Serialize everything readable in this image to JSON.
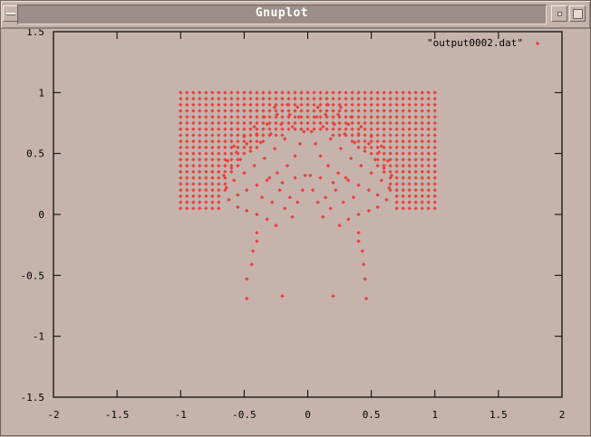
{
  "window": {
    "title": "Gnuplot"
  },
  "colors": {
    "background": "#c6b4ac",
    "point": "#e8413f",
    "axis": "#000000"
  },
  "chart_data": {
    "type": "scatter",
    "marker": "diamond",
    "legend": "top-right",
    "series": [
      {
        "name": "\"output0002.dat\"",
        "points": [
          [
            -0.48,
            -0.69
          ],
          [
            -0.48,
            -0.53
          ],
          [
            -0.44,
            -0.41
          ],
          [
            -0.43,
            -0.3
          ],
          [
            -0.4,
            -0.22
          ],
          [
            -0.4,
            -0.15
          ],
          [
            -0.2,
            -0.67
          ],
          [
            0.2,
            -0.67
          ],
          [
            0.46,
            -0.69
          ],
          [
            0.45,
            -0.53
          ],
          [
            0.44,
            -0.41
          ],
          [
            0.43,
            -0.3
          ],
          [
            0.4,
            -0.22
          ],
          [
            0.4,
            -0.15
          ],
          [
            -0.55,
            0.06
          ],
          [
            -0.48,
            0.03
          ],
          [
            -0.4,
            0.0
          ],
          [
            -0.32,
            -0.04
          ],
          [
            -0.25,
            -0.09
          ],
          [
            -0.18,
            0.05
          ],
          [
            -0.12,
            -0.02
          ],
          [
            -0.08,
            0.1
          ],
          [
            -0.04,
            0.2
          ],
          [
            -0.02,
            0.32
          ],
          [
            0.55,
            0.06
          ],
          [
            0.48,
            0.03
          ],
          [
            0.4,
            0.0
          ],
          [
            0.32,
            -0.04
          ],
          [
            0.25,
            -0.09
          ],
          [
            0.18,
            0.05
          ],
          [
            0.12,
            -0.02
          ],
          [
            0.08,
            0.1
          ],
          [
            0.04,
            0.2
          ],
          [
            0.02,
            0.32
          ],
          [
            -0.62,
            0.12
          ],
          [
            -0.55,
            0.16
          ],
          [
            -0.48,
            0.2
          ],
          [
            -0.4,
            0.24
          ],
          [
            -0.32,
            0.28
          ],
          [
            -0.24,
            0.34
          ],
          [
            -0.16,
            0.4
          ],
          [
            -0.1,
            0.48
          ],
          [
            -0.06,
            0.58
          ],
          [
            -0.03,
            0.68
          ],
          [
            0.62,
            0.12
          ],
          [
            0.55,
            0.16
          ],
          [
            0.48,
            0.2
          ],
          [
            0.4,
            0.24
          ],
          [
            0.32,
            0.28
          ],
          [
            0.24,
            0.34
          ],
          [
            0.16,
            0.4
          ],
          [
            0.1,
            0.48
          ],
          [
            0.06,
            0.58
          ],
          [
            0.03,
            0.68
          ],
          [
            -0.64,
            0.22
          ],
          [
            -0.58,
            0.28
          ],
          [
            -0.5,
            0.34
          ],
          [
            -0.42,
            0.4
          ],
          [
            -0.34,
            0.46
          ],
          [
            -0.26,
            0.54
          ],
          [
            -0.18,
            0.62
          ],
          [
            -0.12,
            0.72
          ],
          [
            -0.07,
            0.8
          ],
          [
            0.64,
            0.22
          ],
          [
            0.58,
            0.28
          ],
          [
            0.5,
            0.34
          ],
          [
            0.42,
            0.4
          ],
          [
            0.34,
            0.46
          ],
          [
            0.26,
            0.54
          ],
          [
            0.18,
            0.62
          ],
          [
            0.12,
            0.72
          ],
          [
            0.07,
            0.8
          ],
          [
            -0.66,
            0.32
          ],
          [
            -0.6,
            0.38
          ],
          [
            -0.53,
            0.45
          ],
          [
            -0.45,
            0.52
          ],
          [
            -0.37,
            0.59
          ],
          [
            -0.29,
            0.66
          ],
          [
            -0.21,
            0.74
          ],
          [
            -0.14,
            0.82
          ],
          [
            -0.08,
            0.88
          ],
          [
            0.66,
            0.32
          ],
          [
            0.6,
            0.38
          ],
          [
            0.53,
            0.45
          ],
          [
            0.45,
            0.52
          ],
          [
            0.37,
            0.59
          ],
          [
            0.29,
            0.66
          ],
          [
            0.21,
            0.74
          ],
          [
            0.14,
            0.82
          ],
          [
            0.08,
            0.88
          ],
          [
            -0.63,
            0.44
          ],
          [
            -0.56,
            0.51
          ],
          [
            -0.48,
            0.58
          ],
          [
            -0.4,
            0.66
          ],
          [
            -0.32,
            0.74
          ],
          [
            -0.24,
            0.82
          ],
          [
            -0.16,
            0.9
          ],
          [
            0.63,
            0.44
          ],
          [
            0.56,
            0.51
          ],
          [
            0.48,
            0.58
          ],
          [
            0.4,
            0.66
          ],
          [
            0.32,
            0.74
          ],
          [
            0.24,
            0.82
          ],
          [
            0.16,
            0.9
          ],
          [
            -0.58,
            0.56
          ],
          [
            -0.5,
            0.64
          ],
          [
            -0.42,
            0.72
          ],
          [
            -0.34,
            0.8
          ],
          [
            -0.26,
            0.88
          ],
          [
            0.58,
            0.56
          ],
          [
            0.5,
            0.64
          ],
          [
            0.42,
            0.72
          ],
          [
            0.34,
            0.8
          ],
          [
            0.26,
            0.88
          ],
          [
            -0.3,
            0.3
          ],
          [
            -0.22,
            0.2
          ],
          [
            -0.14,
            0.14
          ],
          [
            0.3,
            0.3
          ],
          [
            0.22,
            0.2
          ],
          [
            0.14,
            0.14
          ],
          [
            -0.36,
            0.14
          ],
          [
            -0.28,
            0.1
          ],
          [
            0.36,
            0.14
          ],
          [
            0.28,
            0.1
          ],
          [
            -0.2,
            0.26
          ],
          [
            0.2,
            0.26
          ],
          [
            -0.1,
            0.3
          ],
          [
            0.1,
            0.3
          ]
        ]
      }
    ],
    "grid_block": {
      "x_from": -1.0,
      "x_to": 1.0,
      "x_step": 0.05,
      "y_from": 0.05,
      "y_to": 1.0,
      "y_step": 0.05,
      "exclude_fan": {
        "cx": 0,
        "cy": 0.0,
        "radius": 0.68
      }
    },
    "xlim": [
      -2,
      2
    ],
    "ylim": [
      -1.5,
      1.5
    ],
    "xticks": [
      "-2",
      "-1.5",
      "-1",
      "-0.5",
      "0",
      "0.5",
      "1",
      "1.5",
      "2"
    ],
    "xtick_values": [
      -2,
      -1.5,
      -1,
      -0.5,
      0,
      0.5,
      1,
      1.5,
      2
    ],
    "yticks": [
      "1.5",
      "1",
      "0.5",
      "0",
      "-0.5",
      "-1",
      "-1.5"
    ],
    "ytick_values": [
      1.5,
      1,
      0.5,
      0,
      -0.5,
      -1,
      -1.5
    ],
    "grid": false
  }
}
